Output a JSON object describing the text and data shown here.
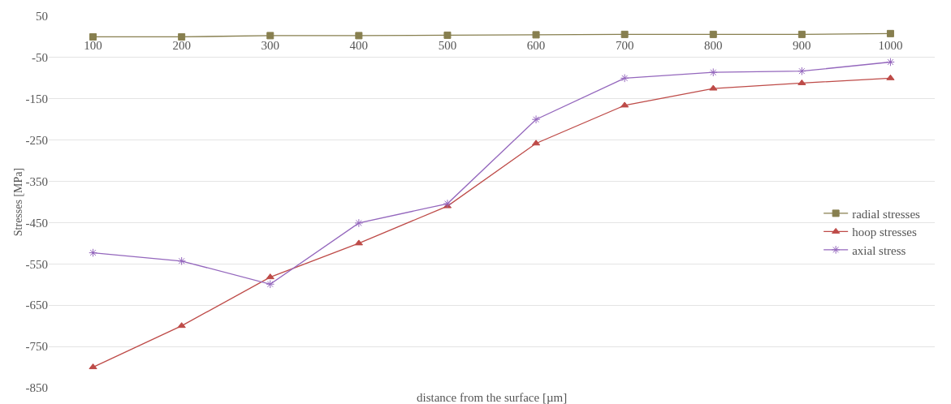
{
  "chart_data": {
    "type": "line",
    "xlabel": "distance from the surface [µm]",
    "ylabel": "Stresses [MPa]",
    "categories": [
      "100",
      "200",
      "300",
      "400",
      "500",
      "600",
      "700",
      "800",
      "900",
      "1000"
    ],
    "series": [
      {
        "name": "radial stresses",
        "color": "#877f4f",
        "marker": "square",
        "values": [
          0,
          0,
          3,
          3,
          4,
          5,
          6,
          6,
          6,
          8
        ]
      },
      {
        "name": "hoop stresses",
        "color": "#be4b48",
        "marker": "triangle",
        "values": [
          -800,
          -700,
          -582,
          -500,
          -410,
          -258,
          -166,
          -125,
          -112,
          -100
        ]
      },
      {
        "name": "axial stress",
        "color": "#9467bd",
        "marker": "cross",
        "values": [
          -523,
          -543,
          -599,
          -451,
          -404,
          -200,
          -100,
          -86,
          -83,
          -61
        ]
      }
    ],
    "ylim": [
      -850,
      50
    ],
    "yticks": [
      -850,
      -750,
      -650,
      -550,
      -450,
      -350,
      -250,
      -150,
      -50,
      50
    ],
    "grid": "y",
    "legend": "right"
  }
}
